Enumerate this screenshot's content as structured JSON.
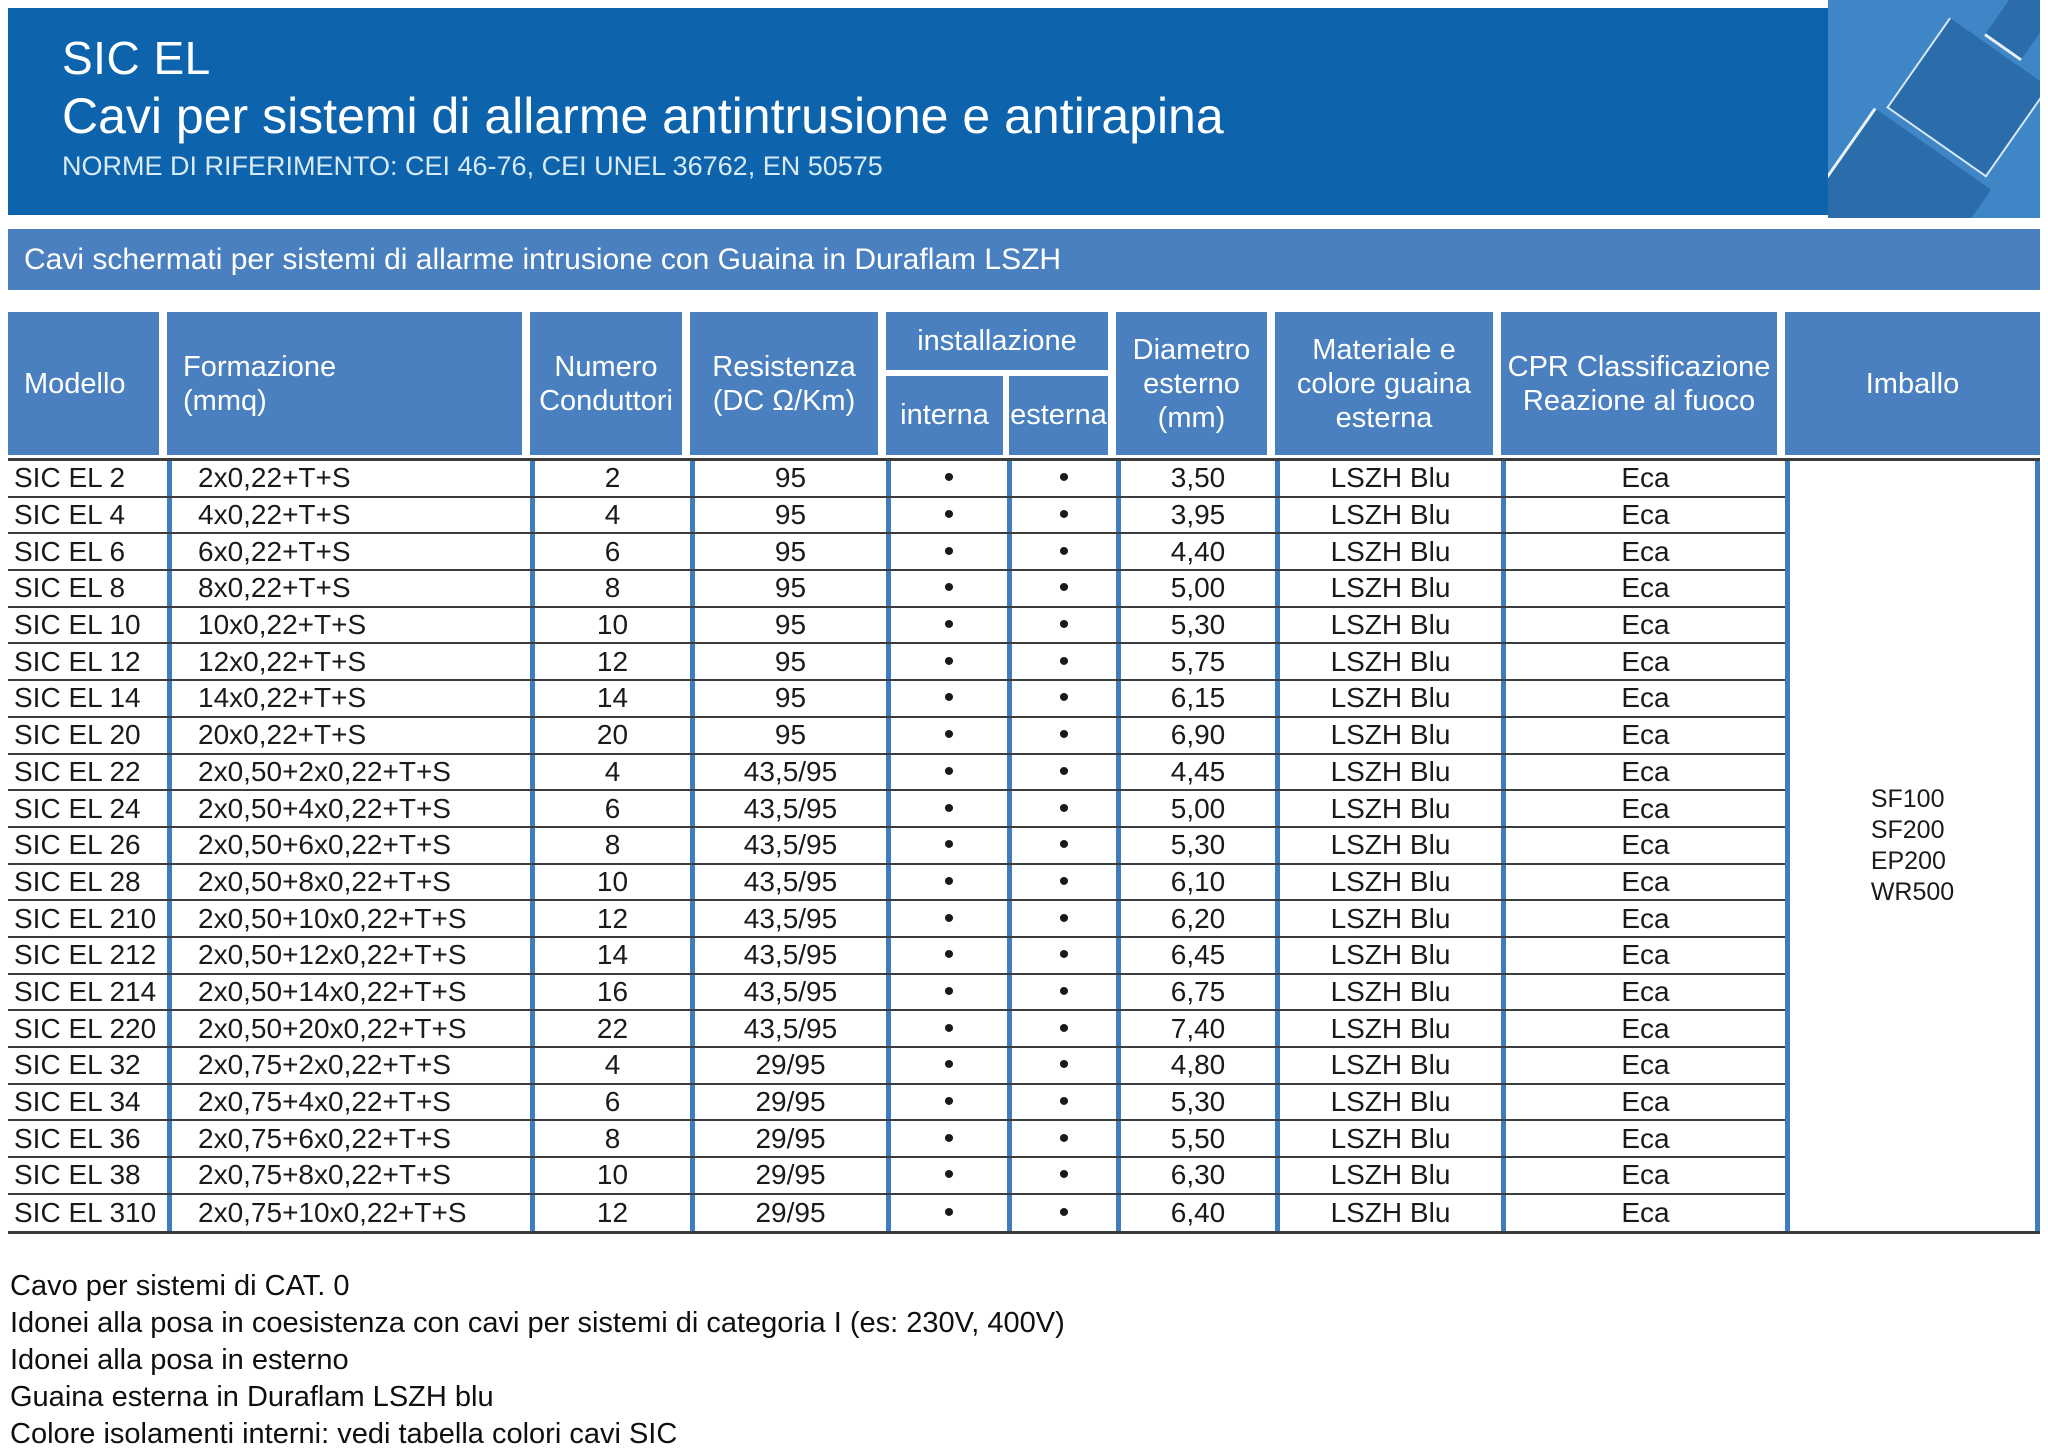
{
  "colors": {
    "header_band": "#0d64ad",
    "section_band": "#4a80bf",
    "table_header": "#4a80bf",
    "column_separator": "#3f7dbe",
    "row_line": "#3c3c3c",
    "icon_background": "#3e86c6",
    "icon_cable": "#2b6cab"
  },
  "header": {
    "product": "SIC EL",
    "title": "Cavi per sistemi di allarme antintrusione e antirapina",
    "norms": "NORME DI RIFERIMENTO: CEI 46-76, CEI UNEL 36762, EN 50575",
    "icon": "cable-connector-icon"
  },
  "band": {
    "label": "Cavi schermati per sistemi di allarme intrusione con Guaina in Duraflam LSZH"
  },
  "table": {
    "headers": {
      "model": "Modello",
      "formation_line1": "Formazione",
      "formation_line2": "(mmq)",
      "conductors": "Numero Conduttori",
      "resistance": "Resistenza (DC Ω/Km)",
      "installation": "installazione",
      "internal": "interna",
      "external": "esterna",
      "diameter": "Diametro esterno (mm)",
      "sheath": "Materiale e colore guaina esterna",
      "cpr": "CPR Classificazione Reazione al fuoco",
      "packaging": "Imballo"
    },
    "rows": [
      {
        "model": "SIC EL 2",
        "formation": "2x0,22+T+S",
        "conductors": "2",
        "resistance": "95",
        "internal": "•",
        "external": "•",
        "diameter": "3,50",
        "sheath": "LSZH Blu",
        "cpr": "Eca"
      },
      {
        "model": "SIC EL 4",
        "formation": "4x0,22+T+S",
        "conductors": "4",
        "resistance": "95",
        "internal": "•",
        "external": "•",
        "diameter": "3,95",
        "sheath": "LSZH Blu",
        "cpr": "Eca"
      },
      {
        "model": "SIC EL 6",
        "formation": "6x0,22+T+S",
        "conductors": "6",
        "resistance": "95",
        "internal": "•",
        "external": "•",
        "diameter": "4,40",
        "sheath": "LSZH Blu",
        "cpr": "Eca"
      },
      {
        "model": "SIC EL 8",
        "formation": "8x0,22+T+S",
        "conductors": "8",
        "resistance": "95",
        "internal": "•",
        "external": "•",
        "diameter": "5,00",
        "sheath": "LSZH Blu",
        "cpr": "Eca"
      },
      {
        "model": "SIC EL 10",
        "formation": "10x0,22+T+S",
        "conductors": "10",
        "resistance": "95",
        "internal": "•",
        "external": "•",
        "diameter": "5,30",
        "sheath": "LSZH Blu",
        "cpr": "Eca"
      },
      {
        "model": "SIC EL 12",
        "formation": "12x0,22+T+S",
        "conductors": "12",
        "resistance": "95",
        "internal": "•",
        "external": "•",
        "diameter": "5,75",
        "sheath": "LSZH Blu",
        "cpr": "Eca"
      },
      {
        "model": "SIC EL 14",
        "formation": "14x0,22+T+S",
        "conductors": "14",
        "resistance": "95",
        "internal": "•",
        "external": "•",
        "diameter": "6,15",
        "sheath": "LSZH Blu",
        "cpr": "Eca"
      },
      {
        "model": "SIC EL 20",
        "formation": "20x0,22+T+S",
        "conductors": "20",
        "resistance": "95",
        "internal": "•",
        "external": "•",
        "diameter": "6,90",
        "sheath": "LSZH Blu",
        "cpr": "Eca"
      },
      {
        "model": "SIC EL 22",
        "formation": "2x0,50+2x0,22+T+S",
        "conductors": "4",
        "resistance": "43,5/95",
        "internal": "•",
        "external": "•",
        "diameter": "4,45",
        "sheath": "LSZH Blu",
        "cpr": "Eca"
      },
      {
        "model": "SIC EL 24",
        "formation": "2x0,50+4x0,22+T+S",
        "conductors": "6",
        "resistance": "43,5/95",
        "internal": "•",
        "external": "•",
        "diameter": "5,00",
        "sheath": "LSZH Blu",
        "cpr": "Eca"
      },
      {
        "model": "SIC EL 26",
        "formation": "2x0,50+6x0,22+T+S",
        "conductors": "8",
        "resistance": "43,5/95",
        "internal": "•",
        "external": "•",
        "diameter": "5,30",
        "sheath": "LSZH Blu",
        "cpr": "Eca"
      },
      {
        "model": "SIC EL 28",
        "formation": "2x0,50+8x0,22+T+S",
        "conductors": "10",
        "resistance": "43,5/95",
        "internal": "•",
        "external": "•",
        "diameter": "6,10",
        "sheath": "LSZH Blu",
        "cpr": "Eca"
      },
      {
        "model": "SIC EL 210",
        "formation": "2x0,50+10x0,22+T+S",
        "conductors": "12",
        "resistance": "43,5/95",
        "internal": "•",
        "external": "•",
        "diameter": "6,20",
        "sheath": "LSZH Blu",
        "cpr": "Eca"
      },
      {
        "model": "SIC EL 212",
        "formation": "2x0,50+12x0,22+T+S",
        "conductors": "14",
        "resistance": "43,5/95",
        "internal": "•",
        "external": "•",
        "diameter": "6,45",
        "sheath": "LSZH Blu",
        "cpr": "Eca"
      },
      {
        "model": "SIC EL 214",
        "formation": "2x0,50+14x0,22+T+S",
        "conductors": "16",
        "resistance": "43,5/95",
        "internal": "•",
        "external": "•",
        "diameter": "6,75",
        "sheath": "LSZH Blu",
        "cpr": "Eca"
      },
      {
        "model": "SIC EL 220",
        "formation": "2x0,50+20x0,22+T+S",
        "conductors": "22",
        "resistance": "43,5/95",
        "internal": "•",
        "external": "•",
        "diameter": "7,40",
        "sheath": "LSZH Blu",
        "cpr": "Eca"
      },
      {
        "model": "SIC EL 32",
        "formation": "2x0,75+2x0,22+T+S",
        "conductors": "4",
        "resistance": "29/95",
        "internal": "•",
        "external": "•",
        "diameter": "4,80",
        "sheath": "LSZH Blu",
        "cpr": "Eca"
      },
      {
        "model": "SIC EL 34",
        "formation": "2x0,75+4x0,22+T+S",
        "conductors": "6",
        "resistance": "29/95",
        "internal": "•",
        "external": "•",
        "diameter": "5,30",
        "sheath": "LSZH Blu",
        "cpr": "Eca"
      },
      {
        "model": "SIC EL 36",
        "formation": "2x0,75+6x0,22+T+S",
        "conductors": "8",
        "resistance": "29/95",
        "internal": "•",
        "external": "•",
        "diameter": "5,50",
        "sheath": "LSZH Blu",
        "cpr": "Eca"
      },
      {
        "model": "SIC EL 38",
        "formation": "2x0,75+8x0,22+T+S",
        "conductors": "10",
        "resistance": "29/95",
        "internal": "•",
        "external": "•",
        "diameter": "6,30",
        "sheath": "LSZH Blu",
        "cpr": "Eca"
      },
      {
        "model": "SIC EL 310",
        "formation": "2x0,75+10x0,22+T+S",
        "conductors": "12",
        "resistance": "29/95",
        "internal": "•",
        "external": "•",
        "diameter": "6,40",
        "sheath": "LSZH Blu",
        "cpr": "Eca"
      }
    ],
    "imballo": [
      "SF100",
      "SF200",
      "EP200",
      "WR500"
    ]
  },
  "footer": {
    "lines": [
      "Cavo per sistemi di CAT. 0",
      "Idonei alla posa in coesistenza con cavi per sistemi di categoria I (es: 230V, 400V)",
      "Idonei alla posa in esterno",
      "Guaina esterna in Duraflam LSZH blu",
      "Colore isolamenti interni: vedi tabella colori cavi SIC"
    ]
  }
}
